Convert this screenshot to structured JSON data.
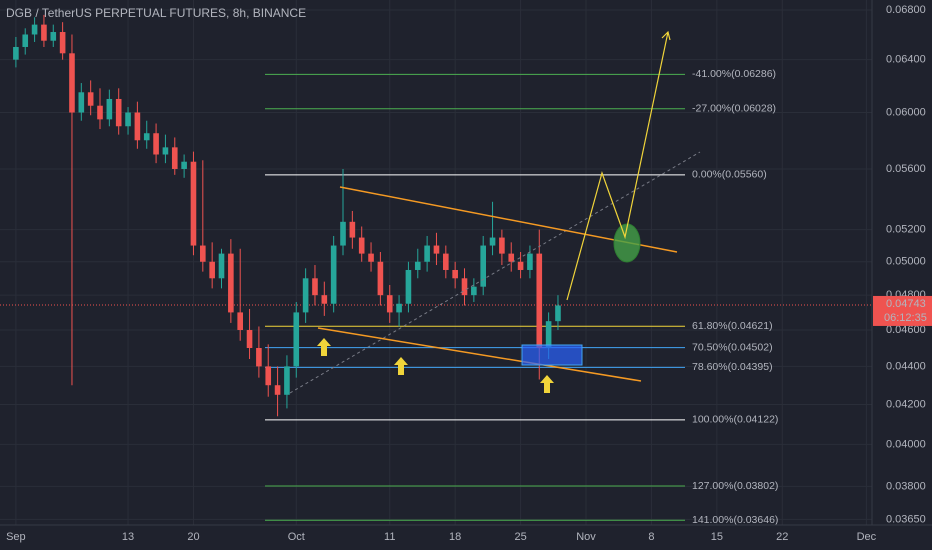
{
  "chart_data": {
    "type": "candlestick",
    "title": "DGB / TetherUS PERPETUAL FUTURES, 8h, BINANCE",
    "log_scale": true,
    "grid": true,
    "up_color": "#26a69a",
    "down_color": "#ef5350",
    "x": [
      0,
      1,
      2,
      3,
      4,
      5,
      6,
      7,
      8,
      9,
      10,
      11,
      12,
      13,
      14,
      15,
      16,
      17,
      18,
      19,
      20,
      21,
      22,
      23,
      24,
      25,
      26,
      27,
      28,
      29,
      30,
      31,
      32,
      33,
      34,
      35,
      36,
      37,
      38,
      39,
      40,
      41,
      42,
      43,
      44,
      45,
      46,
      47,
      48,
      49,
      50,
      51,
      52,
      53,
      54,
      55,
      56,
      57,
      58
    ],
    "open": [
      0.064,
      0.065,
      0.066,
      0.0668,
      0.0655,
      0.0662,
      0.0645,
      0.06,
      0.0615,
      0.0605,
      0.0595,
      0.061,
      0.059,
      0.06,
      0.058,
      0.0585,
      0.057,
      0.0575,
      0.056,
      0.0565,
      0.051,
      0.05,
      0.049,
      0.0505,
      0.047,
      0.046,
      0.045,
      0.044,
      0.043,
      0.0425,
      0.044,
      0.047,
      0.049,
      0.048,
      0.0475,
      0.051,
      0.0525,
      0.0515,
      0.0505,
      0.05,
      0.048,
      0.047,
      0.0475,
      0.0495,
      0.05,
      0.051,
      0.0505,
      0.0495,
      0.049,
      0.048,
      0.0485,
      0.051,
      0.0515,
      0.0505,
      0.05,
      0.0495,
      0.0505,
      0.045,
      0.0465
    ],
    "high": [
      0.0658,
      0.0665,
      0.0674,
      0.0676,
      0.0668,
      0.067,
      0.066,
      0.0622,
      0.0624,
      0.0618,
      0.0617,
      0.0618,
      0.0604,
      0.0608,
      0.0594,
      0.0592,
      0.0584,
      0.0582,
      0.057,
      0.0572,
      0.0566,
      0.0512,
      0.0508,
      0.0514,
      0.0508,
      0.0472,
      0.0462,
      0.0452,
      0.044,
      0.0446,
      0.0476,
      0.0496,
      0.0498,
      0.0488,
      0.0516,
      0.056,
      0.0532,
      0.0522,
      0.0512,
      0.0506,
      0.0486,
      0.048,
      0.05,
      0.0508,
      0.0516,
      0.0518,
      0.051,
      0.05,
      0.0496,
      0.049,
      0.0516,
      0.0538,
      0.052,
      0.0512,
      0.0506,
      0.051,
      0.052,
      0.047,
      0.048
    ],
    "low": [
      0.0634,
      0.0644,
      0.0654,
      0.065,
      0.065,
      0.064,
      0.043,
      0.0594,
      0.0598,
      0.0588,
      0.059,
      0.0584,
      0.0584,
      0.0574,
      0.0574,
      0.0564,
      0.0564,
      0.0556,
      0.0554,
      0.0504,
      0.0494,
      0.0484,
      0.0484,
      0.0464,
      0.0454,
      0.0444,
      0.0434,
      0.0424,
      0.0414,
      0.0418,
      0.0434,
      0.0464,
      0.0474,
      0.0468,
      0.047,
      0.0504,
      0.0508,
      0.05,
      0.0494,
      0.0474,
      0.0464,
      0.0462,
      0.047,
      0.049,
      0.0494,
      0.0498,
      0.049,
      0.0484,
      0.0474,
      0.0476,
      0.048,
      0.0504,
      0.0498,
      0.0494,
      0.049,
      0.049,
      0.0433,
      0.0444,
      0.046
    ],
    "close": [
      0.065,
      0.066,
      0.0668,
      0.0655,
      0.0662,
      0.0645,
      0.06,
      0.0615,
      0.0605,
      0.0595,
      0.061,
      0.059,
      0.06,
      0.058,
      0.0585,
      0.057,
      0.0575,
      0.056,
      0.0565,
      0.051,
      0.05,
      0.049,
      0.0505,
      0.047,
      0.046,
      0.045,
      0.044,
      0.043,
      0.0425,
      0.044,
      0.047,
      0.049,
      0.048,
      0.0475,
      0.051,
      0.0525,
      0.0515,
      0.0505,
      0.05,
      0.048,
      0.047,
      0.0475,
      0.0495,
      0.05,
      0.051,
      0.0505,
      0.0495,
      0.049,
      0.048,
      0.0485,
      0.051,
      0.0515,
      0.0505,
      0.05,
      0.0495,
      0.0505,
      0.045,
      0.0465,
      0.0474
    ],
    "xlim": [
      -1.7,
      91.6
    ],
    "xticks": [
      {
        "value": 0,
        "label": "Sep"
      },
      {
        "value": 12,
        "label": "13"
      },
      {
        "value": 19,
        "label": "20"
      },
      {
        "value": 30,
        "label": "Oct"
      },
      {
        "value": 40,
        "label": "11"
      },
      {
        "value": 47,
        "label": "18"
      },
      {
        "value": 54,
        "label": "25"
      },
      {
        "value": 61,
        "label": "Nov"
      },
      {
        "value": 68,
        "label": "8"
      },
      {
        "value": 75,
        "label": "15"
      },
      {
        "value": 82,
        "label": "22"
      },
      {
        "value": 91,
        "label": "Dec"
      }
    ],
    "ylim": [
      0.03625,
      0.06884
    ],
    "yticks": [
      {
        "value": 0.068,
        "label": "0.06800"
      },
      {
        "value": 0.064,
        "label": "0.06400"
      },
      {
        "value": 0.06,
        "label": "0.06000"
      },
      {
        "value": 0.056,
        "label": "0.05600"
      },
      {
        "value": 0.052,
        "label": "0.05200"
      },
      {
        "value": 0.05,
        "label": "0.05000"
      },
      {
        "value": 0.048,
        "label": "0.04800"
      },
      {
        "value": 0.046,
        "label": "0.04600"
      },
      {
        "value": 0.044,
        "label": "0.04400"
      },
      {
        "value": 0.042,
        "label": "0.04200"
      },
      {
        "value": 0.04,
        "label": "0.04000"
      },
      {
        "value": 0.038,
        "label": "0.03800"
      },
      {
        "value": 0.0365,
        "label": "0.03650"
      }
    ],
    "fib_levels": [
      {
        "label": "-41.00%(0.06286)",
        "value": 0.06286,
        "color": "#4caf50"
      },
      {
        "label": "-27.00%(0.06028)",
        "value": 0.06028,
        "color": "#4caf50"
      },
      {
        "label": "0.00%(0.05560)",
        "value": 0.0556,
        "color": "#ffffff"
      },
      {
        "label": "61.80%(0.04621)",
        "value": 0.04621,
        "color": "#f0d43a"
      },
      {
        "label": "70.50%(0.04502)",
        "value": 0.04502,
        "color": "#42a5f5"
      },
      {
        "label": "78.60%(0.04395)",
        "value": 0.04395,
        "color": "#42a5f5"
      },
      {
        "label": "100.00%(0.04122)",
        "value": 0.04122,
        "color": "#ffffff"
      },
      {
        "label": "127.00%(0.03802)",
        "value": 0.03802,
        "color": "#4caf50"
      },
      {
        "label": "141.00%(0.03646)",
        "value": 0.03646,
        "color": "#4caf50"
      }
    ],
    "last_price": 0.04743,
    "countdown": "06:12:35"
  }
}
